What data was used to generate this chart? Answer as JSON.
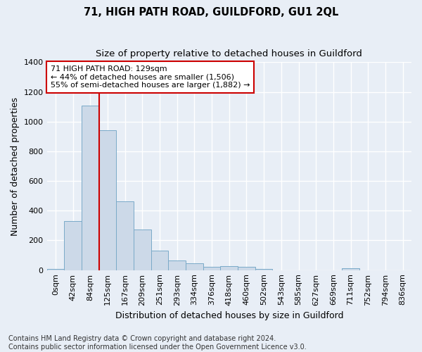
{
  "title": "71, HIGH PATH ROAD, GUILDFORD, GU1 2QL",
  "subtitle": "Size of property relative to detached houses in Guildford",
  "xlabel": "Distribution of detached houses by size in Guildford",
  "ylabel": "Number of detached properties",
  "bar_labels": [
    "0sqm",
    "42sqm",
    "84sqm",
    "125sqm",
    "167sqm",
    "209sqm",
    "251sqm",
    "293sqm",
    "334sqm",
    "376sqm",
    "418sqm",
    "460sqm",
    "502sqm",
    "543sqm",
    "585sqm",
    "627sqm",
    "669sqm",
    "711sqm",
    "752sqm",
    "794sqm",
    "836sqm"
  ],
  "bar_values": [
    10,
    330,
    1110,
    940,
    465,
    275,
    130,
    65,
    45,
    20,
    25,
    20,
    10,
    0,
    0,
    0,
    0,
    15,
    0,
    0,
    0
  ],
  "bar_color": "#ccd9e8",
  "bar_edge_color": "#7aaac8",
  "vline_x_bar_index": 3,
  "vline_color": "#cc0000",
  "ylim": [
    0,
    1400
  ],
  "yticks": [
    0,
    200,
    400,
    600,
    800,
    1000,
    1200,
    1400
  ],
  "annotation_text": "71 HIGH PATH ROAD: 129sqm\n← 44% of detached houses are smaller (1,506)\n55% of semi-detached houses are larger (1,882) →",
  "annotation_box_edgecolor": "#cc0000",
  "footer_text": "Contains HM Land Registry data © Crown copyright and database right 2024.\nContains public sector information licensed under the Open Government Licence v3.0.",
  "background_color": "#e8eef6",
  "grid_color": "#ffffff",
  "title_fontsize": 10.5,
  "subtitle_fontsize": 9.5,
  "ylabel_fontsize": 9,
  "xlabel_fontsize": 9,
  "tick_fontsize": 8,
  "annotation_fontsize": 8,
  "footer_fontsize": 7
}
